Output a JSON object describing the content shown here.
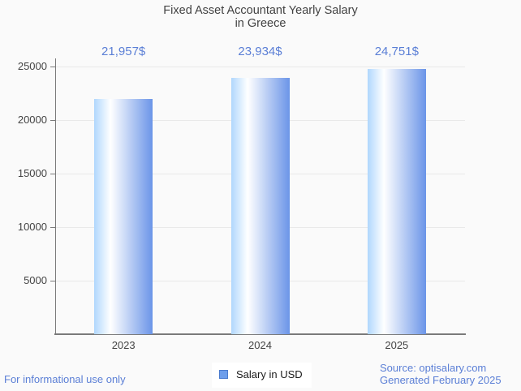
{
  "title": {
    "line1": "Fixed Asset Accountant Yearly Salary",
    "line2": "in Greece"
  },
  "chart_data": {
    "type": "bar",
    "title": "Fixed Asset Accountant Yearly Salary in Greece",
    "categories": [
      "2023",
      "2024",
      "2025"
    ],
    "series": [
      {
        "name": "Salary in USD",
        "values": [
          21957,
          23934,
          24751
        ]
      }
    ],
    "value_labels": [
      "21,957$",
      "23,934$",
      "24,751$"
    ],
    "xlabel": "",
    "ylabel": "",
    "ylim": [
      0,
      25000
    ],
    "yticks": [
      5000,
      10000,
      15000,
      20000,
      25000
    ],
    "ytick_labels": [
      "5000",
      "10000",
      "15000",
      "20000",
      "25000"
    ],
    "grid": true,
    "legend_position": "bottom",
    "bar_gradient": [
      "#b0d7fd",
      "#ffffff",
      "#6b95e8"
    ],
    "bar_gradient_white_stop": "28%"
  },
  "legend": {
    "label": "Salary in USD",
    "swatch_color": "#6d9eeb",
    "swatch_border": "#4a7bce"
  },
  "footer": {
    "left": "For informational use only",
    "source": "Source: optisalary.com",
    "generated": "Generated February 2025"
  },
  "colors": {
    "background": "#fafafa",
    "accent_text": "#5b7fd6",
    "title_text": "#424242",
    "axis_text": "#444444",
    "gridline": "#e9e9e9",
    "axis_line": "#7a7a7a"
  }
}
